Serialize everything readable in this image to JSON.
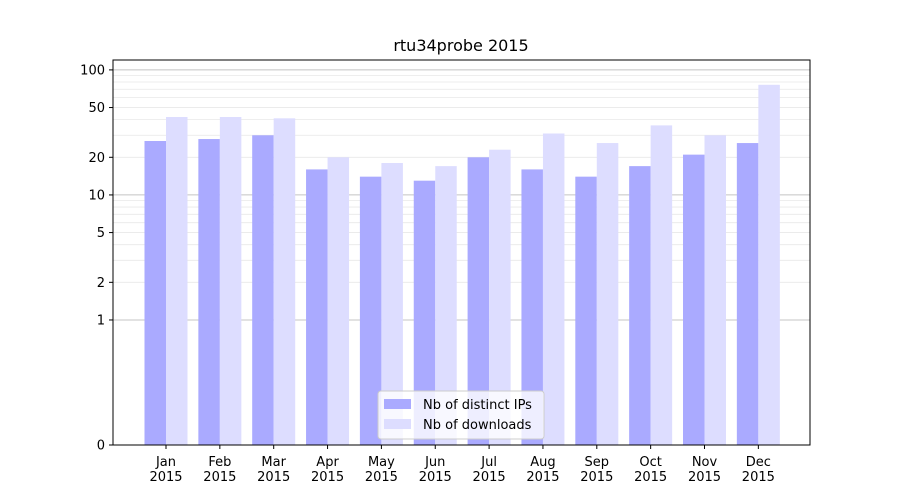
{
  "chart_data": {
    "type": "bar",
    "title": "rtu34probe 2015",
    "xlabel": "",
    "ylabel": "",
    "y_scale": "symlog",
    "ylim": [
      0,
      120
    ],
    "y_ticks": [
      0,
      1,
      2,
      5,
      10,
      20,
      50,
      100
    ],
    "y_tick_labels": [
      "0",
      "1",
      "2",
      "5",
      "10",
      "20",
      "50",
      "100"
    ],
    "categories": [
      "Jan\n2015",
      "Feb\n2015",
      "Mar\n2015",
      "Apr\n2015",
      "May\n2015",
      "Jun\n2015",
      "Jul\n2015",
      "Aug\n2015",
      "Sep\n2015",
      "Oct\n2015",
      "Nov\n2015",
      "Dec\n2015"
    ],
    "series": [
      {
        "name": "Nb of distinct IPs",
        "color": "#aaaaff",
        "values": [
          27,
          28,
          30,
          16,
          14,
          13,
          20,
          16,
          14,
          17,
          21,
          26
        ]
      },
      {
        "name": "Nb of downloads",
        "color": "#ddddff",
        "values": [
          42,
          42,
          41,
          20,
          18,
          17,
          23,
          31,
          26,
          36,
          30,
          76
        ]
      }
    ],
    "grid": true,
    "legend_position": "bottom-center"
  }
}
